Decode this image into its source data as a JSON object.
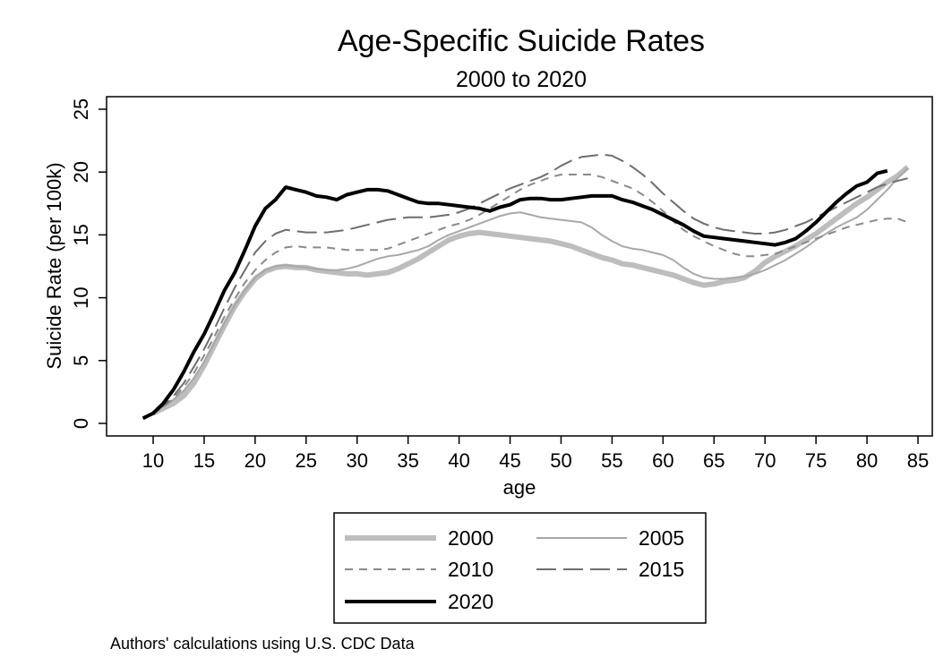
{
  "chart_data": {
    "type": "line",
    "title": "Age-Specific Suicide Rates",
    "subtitle": "2000 to 2020",
    "xlabel": "age",
    "ylabel": "Suicide Rate (per 100k)",
    "xlim": [
      9,
      85
    ],
    "ylim": [
      -1,
      26
    ],
    "x_ticks": [
      10,
      15,
      20,
      25,
      30,
      35,
      40,
      45,
      50,
      55,
      60,
      65,
      70,
      75,
      80,
      85
    ],
    "y_ticks": [
      0,
      5,
      10,
      15,
      20,
      25
    ],
    "grid": false,
    "legend_position": "bottom",
    "note": "Authors' calculations using U.S. CDC Data",
    "series": [
      {
        "name": "2000",
        "color": "#bdbdbd",
        "style": "solid-thick",
        "x": [
          10,
          11,
          12,
          13,
          14,
          15,
          16,
          17,
          18,
          19,
          20,
          21,
          22,
          23,
          24,
          25,
          26,
          27,
          28,
          29,
          30,
          31,
          32,
          33,
          34,
          35,
          36,
          37,
          38,
          39,
          40,
          41,
          42,
          43,
          44,
          45,
          46,
          47,
          48,
          49,
          50,
          51,
          52,
          53,
          54,
          55,
          56,
          57,
          58,
          59,
          60,
          61,
          62,
          63,
          64,
          65,
          66,
          67,
          68,
          69,
          70,
          71,
          72,
          73,
          74,
          75,
          76,
          77,
          78,
          79,
          80,
          81,
          82,
          83,
          84
        ],
        "values": [
          0.8,
          1.2,
          1.6,
          2.2,
          3.2,
          4.6,
          6.2,
          7.8,
          9.3,
          10.5,
          11.5,
          12.1,
          12.4,
          12.5,
          12.4,
          12.4,
          12.2,
          12.1,
          12.0,
          11.9,
          11.9,
          11.8,
          11.9,
          12.0,
          12.3,
          12.7,
          13.1,
          13.6,
          14.1,
          14.6,
          14.9,
          15.1,
          15.2,
          15.1,
          15.0,
          14.9,
          14.8,
          14.7,
          14.6,
          14.5,
          14.3,
          14.1,
          13.8,
          13.5,
          13.2,
          13.0,
          12.7,
          12.6,
          12.4,
          12.2,
          12.0,
          11.8,
          11.5,
          11.2,
          11.0,
          11.1,
          11.3,
          11.4,
          11.6,
          12.1,
          12.8,
          13.3,
          13.7,
          14.1,
          14.6,
          15.1,
          15.7,
          16.3,
          16.9,
          17.5,
          18.0,
          18.6,
          19.2,
          19.7,
          20.4
        ]
      },
      {
        "name": "2005",
        "color": "#a8a8a8",
        "style": "solid-thin",
        "x": [
          10,
          11,
          12,
          13,
          14,
          15,
          16,
          17,
          18,
          19,
          20,
          21,
          22,
          23,
          24,
          25,
          26,
          27,
          28,
          29,
          30,
          31,
          32,
          33,
          34,
          35,
          36,
          37,
          38,
          39,
          40,
          41,
          42,
          43,
          44,
          45,
          46,
          47,
          48,
          49,
          50,
          51,
          52,
          53,
          54,
          55,
          56,
          57,
          58,
          59,
          60,
          61,
          62,
          63,
          64,
          65,
          66,
          67,
          68,
          69,
          70,
          71,
          72,
          73,
          74,
          75,
          76,
          77,
          78,
          79,
          80,
          81,
          82,
          83,
          84
        ],
        "values": [
          0.8,
          1.3,
          1.9,
          2.6,
          3.6,
          4.9,
          6.4,
          8.0,
          9.4,
          10.6,
          11.6,
          12.2,
          12.5,
          12.6,
          12.5,
          12.4,
          12.3,
          12.2,
          12.2,
          12.3,
          12.5,
          12.8,
          13.1,
          13.3,
          13.4,
          13.6,
          13.8,
          14.1,
          14.6,
          15.0,
          15.3,
          15.6,
          15.9,
          16.2,
          16.5,
          16.7,
          16.8,
          16.6,
          16.4,
          16.3,
          16.2,
          16.1,
          16.0,
          15.6,
          15.0,
          14.5,
          14.1,
          13.9,
          13.8,
          13.6,
          13.4,
          13.0,
          12.4,
          11.9,
          11.6,
          11.5,
          11.5,
          11.6,
          11.7,
          11.9,
          12.2,
          12.6,
          13.0,
          13.5,
          14.0,
          14.6,
          15.1,
          15.6,
          16.0,
          16.4,
          17.0,
          17.8,
          18.6,
          19.5,
          20.3
        ]
      },
      {
        "name": "2010",
        "color": "#8a8a8a",
        "style": "short-dash",
        "x": [
          10,
          11,
          12,
          13,
          14,
          15,
          16,
          17,
          18,
          19,
          20,
          21,
          22,
          23,
          24,
          25,
          26,
          27,
          28,
          29,
          30,
          31,
          32,
          33,
          34,
          35,
          36,
          37,
          38,
          39,
          40,
          41,
          42,
          43,
          44,
          45,
          46,
          47,
          48,
          49,
          50,
          51,
          52,
          53,
          54,
          55,
          56,
          57,
          58,
          59,
          60,
          61,
          62,
          63,
          64,
          65,
          66,
          67,
          68,
          69,
          70,
          71,
          72,
          73,
          74,
          75,
          76,
          77,
          78,
          79,
          80,
          81,
          82,
          83,
          84
        ],
        "values": [
          0.8,
          1.3,
          2.0,
          2.9,
          4.0,
          5.4,
          6.9,
          8.5,
          9.9,
          11.2,
          12.2,
          13.0,
          13.6,
          14.0,
          14.1,
          14.0,
          14.0,
          14.0,
          13.9,
          13.8,
          13.8,
          13.8,
          13.8,
          13.9,
          14.2,
          14.5,
          14.8,
          15.1,
          15.4,
          15.7,
          15.9,
          16.2,
          16.6,
          17.1,
          17.6,
          18.1,
          18.6,
          19.0,
          19.3,
          19.6,
          19.8,
          19.8,
          19.8,
          19.8,
          19.6,
          19.3,
          19.0,
          18.7,
          18.2,
          17.6,
          16.9,
          16.1,
          15.4,
          14.9,
          14.5,
          14.1,
          13.8,
          13.5,
          13.3,
          13.3,
          13.4,
          13.5,
          13.8,
          14.1,
          14.4,
          14.7,
          15.0,
          15.3,
          15.6,
          15.8,
          16.0,
          16.2,
          16.3,
          16.3,
          16.0
        ]
      },
      {
        "name": "2015",
        "color": "#6e6e6e",
        "style": "long-dash",
        "x": [
          10,
          11,
          12,
          13,
          14,
          15,
          16,
          17,
          18,
          19,
          20,
          21,
          22,
          23,
          24,
          25,
          26,
          27,
          28,
          29,
          30,
          31,
          32,
          33,
          34,
          35,
          36,
          37,
          38,
          39,
          40,
          41,
          42,
          43,
          44,
          45,
          46,
          47,
          48,
          49,
          50,
          51,
          52,
          53,
          54,
          55,
          56,
          57,
          58,
          59,
          60,
          61,
          62,
          63,
          64,
          65,
          66,
          67,
          68,
          69,
          70,
          71,
          72,
          73,
          74,
          75,
          76,
          77,
          78,
          79,
          80,
          81,
          82,
          83,
          84
        ],
        "values": [
          0.9,
          1.4,
          2.2,
          3.2,
          4.5,
          5.9,
          7.5,
          9.2,
          10.8,
          12.2,
          13.6,
          14.5,
          15.1,
          15.4,
          15.3,
          15.2,
          15.2,
          15.2,
          15.3,
          15.4,
          15.6,
          15.8,
          16.0,
          16.2,
          16.3,
          16.4,
          16.4,
          16.4,
          16.5,
          16.6,
          16.8,
          17.1,
          17.5,
          17.9,
          18.3,
          18.7,
          19.0,
          19.3,
          19.6,
          20.0,
          20.5,
          20.9,
          21.2,
          21.3,
          21.4,
          21.3,
          20.9,
          20.4,
          19.8,
          19.1,
          18.3,
          17.6,
          16.9,
          16.3,
          15.9,
          15.6,
          15.4,
          15.3,
          15.2,
          15.1,
          15.1,
          15.2,
          15.4,
          15.7,
          16.0,
          16.4,
          16.8,
          17.2,
          17.6,
          18.0,
          18.4,
          18.8,
          19.1,
          19.3,
          19.5
        ]
      },
      {
        "name": "2020",
        "color": "#000000",
        "style": "solid-thick",
        "x": [
          9,
          10,
          11,
          12,
          13,
          14,
          15,
          16,
          17,
          18,
          19,
          20,
          21,
          22,
          23,
          24,
          25,
          26,
          27,
          28,
          29,
          30,
          31,
          32,
          33,
          34,
          35,
          36,
          37,
          38,
          39,
          40,
          41,
          42,
          43,
          44,
          45,
          46,
          47,
          48,
          49,
          50,
          51,
          52,
          53,
          54,
          55,
          56,
          57,
          58,
          59,
          60,
          61,
          62,
          63,
          64,
          65,
          66,
          67,
          68,
          69,
          70,
          71,
          72,
          73,
          74,
          75,
          76,
          77,
          78,
          79,
          80,
          81,
          82
        ],
        "values": [
          0.4,
          0.8,
          1.6,
          2.7,
          4.1,
          5.7,
          7.1,
          8.8,
          10.6,
          12.0,
          13.8,
          15.7,
          17.1,
          17.8,
          18.8,
          18.6,
          18.4,
          18.1,
          18.0,
          17.8,
          18.2,
          18.4,
          18.6,
          18.6,
          18.5,
          18.2,
          17.9,
          17.6,
          17.5,
          17.5,
          17.4,
          17.3,
          17.2,
          17.1,
          16.9,
          17.2,
          17.4,
          17.8,
          17.9,
          17.9,
          17.8,
          17.8,
          17.9,
          18.0,
          18.1,
          18.1,
          18.1,
          17.8,
          17.6,
          17.3,
          17.0,
          16.6,
          16.2,
          15.8,
          15.3,
          14.9,
          14.8,
          14.7,
          14.6,
          14.5,
          14.4,
          14.3,
          14.2,
          14.4,
          14.7,
          15.3,
          16.0,
          16.8,
          17.6,
          18.3,
          18.9,
          19.2,
          19.9,
          20.1
        ]
      }
    ]
  }
}
